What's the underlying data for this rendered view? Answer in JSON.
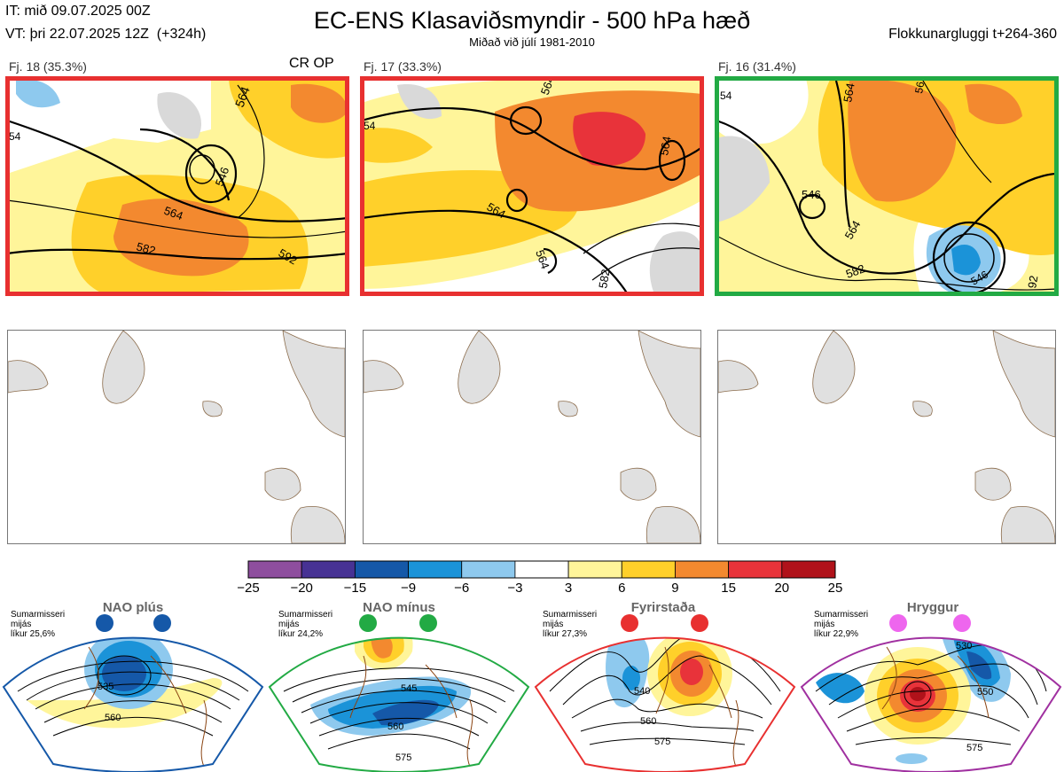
{
  "header": {
    "it": "IT: mið 09.07.2025 00Z",
    "vt": "VT: þri 22.07.2025 12Z  (+324h)",
    "title": "EC-ENS Klasaviðsmyndir - 500 hPa hæð",
    "subtitle": "Miðað við júlí 1981-2010",
    "window": "Flokkunargluggi t+264-360"
  },
  "clusters": [
    {
      "label": "Fj. 18 (35.3%)",
      "marker": "CR OP",
      "frame_color": "#e83030",
      "contours": [
        "564",
        "546",
        "564",
        "582",
        "592",
        "54"
      ]
    },
    {
      "label": "Fj. 17 (33.3%)",
      "marker": "",
      "frame_color": "#e83030",
      "contours": [
        "564",
        "54",
        "564",
        "564",
        "582",
        "564"
      ]
    },
    {
      "label": "Fj. 16 (31.4%)",
      "marker": "",
      "frame_color": "#22aa44",
      "contours": [
        "564",
        "546",
        "564",
        "582",
        "54",
        "546",
        "56",
        "92"
      ]
    }
  ],
  "chart_data": {
    "type": "heatmap",
    "title": "EC-ENS Klasaviðsmyndir - 500 hPa hæð",
    "subtitle": "Miðað við júlí 1981-2010",
    "colorbar": {
      "ticks": [
        "−25",
        "−20",
        "−15",
        "−9",
        "−6",
        "−3",
        "3",
        "6",
        "9",
        "15",
        "20",
        "25"
      ],
      "colors": [
        "#8e4e9e",
        "#473294",
        "#1558a8",
        "#1b93d8",
        "#8ec9ee",
        "#ffffff",
        "#fff59a",
        "#ffd02a",
        "#f3892f",
        "#e8333a",
        "#b0121a"
      ]
    },
    "cluster_probabilities_percent": [
      35.3,
      33.3,
      31.4
    ],
    "regimes": [
      {
        "name": "NAO plús",
        "info": [
          "Sumarmisseri",
          "mijás",
          "líkur 25,6%"
        ],
        "probability_percent": 25.6,
        "color": "#1558a8",
        "contours": [
          "535",
          "560"
        ]
      },
      {
        "name": "NAO mínus",
        "info": [
          "Sumarmisseri",
          "mijás",
          "líkur 24,2%"
        ],
        "probability_percent": 24.2,
        "color": "#22aa44",
        "contours": [
          "545",
          "560",
          "575"
        ]
      },
      {
        "name": "Fyrirstaða",
        "info": [
          "Sumarmisseri",
          "mijás",
          "líkur 27,3%"
        ],
        "probability_percent": 27.3,
        "color": "#e83030",
        "contours": [
          "540",
          "560",
          "575"
        ]
      },
      {
        "name": "Hryggur",
        "info": [
          "Sumarmisseri",
          "mijás",
          "líkur 22,9%"
        ],
        "probability_percent": 22.9,
        "color": "#a030a0",
        "contours": [
          "530",
          "550",
          "575"
        ]
      }
    ]
  }
}
